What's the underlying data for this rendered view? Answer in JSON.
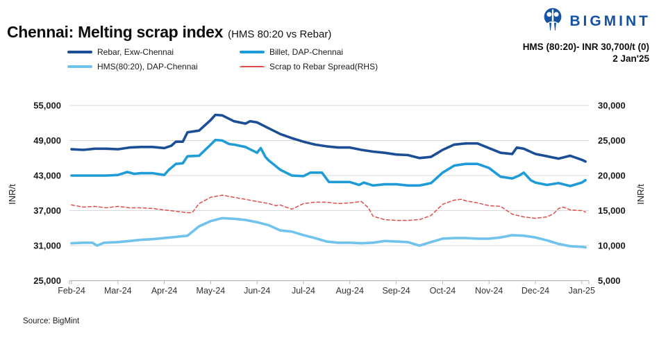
{
  "header": {
    "brand": "BIGMINT",
    "price_line": "HMS (80:20)- INR 30,700/t (0)",
    "date_line": "2 Jan'25"
  },
  "source_note": "Source: BigMint",
  "chart_data": {
    "type": "line",
    "title": "Chennai: Melting scrap index",
    "subtitle": "(HMS 80:20 vs Rebar)",
    "grid": "horizontal",
    "legend_position": "top",
    "x_tick_labels": [
      "Feb-24",
      "Mar-24",
      "Apr-24",
      "May-24",
      "Jun-24",
      "Jul-24",
      "Aug-24",
      "Sep-24",
      "Oct-24",
      "Nov-24",
      "Dec-24",
      "Jan-25"
    ],
    "x_unit": "months since Feb-24",
    "left_axis": {
      "label": "INR/t",
      "min": 25000,
      "max": 55000,
      "step": 6000,
      "ticks_top_to_bottom": [
        "55,000",
        "49,000",
        "43,000",
        "37,000",
        "31,000",
        "25,000"
      ]
    },
    "right_axis": {
      "label": "INR/t",
      "min": 5000,
      "max": 30000,
      "step": 5000,
      "ticks_top_to_bottom": [
        "30,000",
        "25,000",
        "20,000",
        "15,000",
        "10,000",
        "5,000"
      ]
    },
    "series": [
      {
        "name": "Rebar, Exw-Chennai",
        "axis": "left",
        "color": "#1b4e96",
        "style": "solid",
        "width": 3.6,
        "points": [
          [
            0,
            47500
          ],
          [
            0.25,
            47400
          ],
          [
            0.5,
            47600
          ],
          [
            0.75,
            47600
          ],
          [
            1,
            47500
          ],
          [
            1.25,
            47800
          ],
          [
            1.5,
            47900
          ],
          [
            1.75,
            47900
          ],
          [
            2,
            47700
          ],
          [
            2.15,
            48100
          ],
          [
            2.25,
            48800
          ],
          [
            2.4,
            48800
          ],
          [
            2.5,
            50400
          ],
          [
            2.75,
            50700
          ],
          [
            3,
            52500
          ],
          [
            3.1,
            53400
          ],
          [
            3.25,
            53300
          ],
          [
            3.5,
            52300
          ],
          [
            3.75,
            51900
          ],
          [
            3.85,
            52300
          ],
          [
            4,
            52100
          ],
          [
            4.25,
            51100
          ],
          [
            4.5,
            50100
          ],
          [
            4.75,
            49400
          ],
          [
            5,
            48800
          ],
          [
            5.25,
            48300
          ],
          [
            5.5,
            48000
          ],
          [
            5.75,
            47800
          ],
          [
            6,
            47800
          ],
          [
            6.25,
            47400
          ],
          [
            6.5,
            47100
          ],
          [
            6.75,
            46900
          ],
          [
            7,
            46600
          ],
          [
            7.25,
            46500
          ],
          [
            7.5,
            46000
          ],
          [
            7.75,
            46200
          ],
          [
            8,
            47400
          ],
          [
            8.25,
            48300
          ],
          [
            8.5,
            48500
          ],
          [
            8.75,
            48500
          ],
          [
            9,
            47700
          ],
          [
            9.25,
            46900
          ],
          [
            9.5,
            46700
          ],
          [
            9.6,
            47800
          ],
          [
            9.75,
            47600
          ],
          [
            10,
            46700
          ],
          [
            10.25,
            46300
          ],
          [
            10.5,
            45900
          ],
          [
            10.75,
            46400
          ],
          [
            11,
            45700
          ],
          [
            11.08,
            45400
          ]
        ]
      },
      {
        "name": "Billet, DAP-Chennai",
        "axis": "left",
        "color": "#1f9cd8",
        "style": "solid",
        "width": 3.6,
        "points": [
          [
            0,
            43000
          ],
          [
            0.25,
            43000
          ],
          [
            0.5,
            43000
          ],
          [
            0.75,
            43000
          ],
          [
            1,
            43100
          ],
          [
            1.2,
            43600
          ],
          [
            1.35,
            43300
          ],
          [
            1.5,
            43400
          ],
          [
            1.75,
            43400
          ],
          [
            2,
            43100
          ],
          [
            2.1,
            44000
          ],
          [
            2.25,
            45000
          ],
          [
            2.4,
            45100
          ],
          [
            2.5,
            46300
          ],
          [
            2.75,
            46400
          ],
          [
            3,
            48300
          ],
          [
            3.1,
            49100
          ],
          [
            3.25,
            49000
          ],
          [
            3.4,
            48400
          ],
          [
            3.5,
            48300
          ],
          [
            3.75,
            47900
          ],
          [
            4,
            46900
          ],
          [
            4.08,
            47700
          ],
          [
            4.18,
            46200
          ],
          [
            4.25,
            45600
          ],
          [
            4.5,
            44000
          ],
          [
            4.75,
            43000
          ],
          [
            5,
            42900
          ],
          [
            5.15,
            43500
          ],
          [
            5.4,
            43500
          ],
          [
            5.55,
            41900
          ],
          [
            5.75,
            41900
          ],
          [
            6,
            41900
          ],
          [
            6.2,
            41400
          ],
          [
            6.3,
            41800
          ],
          [
            6.5,
            41300
          ],
          [
            6.75,
            41500
          ],
          [
            7,
            41500
          ],
          [
            7.25,
            41300
          ],
          [
            7.5,
            41300
          ],
          [
            7.75,
            41700
          ],
          [
            8,
            43500
          ],
          [
            8.25,
            44700
          ],
          [
            8.5,
            45000
          ],
          [
            8.75,
            45000
          ],
          [
            9,
            44300
          ],
          [
            9.25,
            42800
          ],
          [
            9.5,
            42500
          ],
          [
            9.65,
            43000
          ],
          [
            9.75,
            43500
          ],
          [
            9.9,
            42200
          ],
          [
            10,
            41800
          ],
          [
            10.25,
            41400
          ],
          [
            10.5,
            41700
          ],
          [
            10.75,
            41200
          ],
          [
            11,
            41800
          ],
          [
            11.08,
            42200
          ]
        ]
      },
      {
        "name": "HMS(80:20), DAP-Chennai",
        "axis": "left",
        "color": "#70c4ec",
        "style": "solid",
        "width": 3.6,
        "points": [
          [
            0,
            31400
          ],
          [
            0.25,
            31500
          ],
          [
            0.45,
            31500
          ],
          [
            0.55,
            31000
          ],
          [
            0.7,
            31500
          ],
          [
            1,
            31600
          ],
          [
            1.25,
            31800
          ],
          [
            1.5,
            32000
          ],
          [
            1.75,
            32100
          ],
          [
            2,
            32300
          ],
          [
            2.25,
            32500
          ],
          [
            2.5,
            32700
          ],
          [
            2.75,
            34300
          ],
          [
            3,
            35200
          ],
          [
            3.25,
            35700
          ],
          [
            3.5,
            35600
          ],
          [
            3.75,
            35400
          ],
          [
            4,
            35000
          ],
          [
            4.25,
            34500
          ],
          [
            4.5,
            33600
          ],
          [
            4.75,
            33400
          ],
          [
            5,
            32800
          ],
          [
            5.25,
            32300
          ],
          [
            5.5,
            31700
          ],
          [
            5.75,
            31500
          ],
          [
            6,
            31500
          ],
          [
            6.25,
            31400
          ],
          [
            6.5,
            31500
          ],
          [
            6.75,
            31800
          ],
          [
            7,
            31700
          ],
          [
            7.25,
            31600
          ],
          [
            7.5,
            31000
          ],
          [
            7.75,
            31600
          ],
          [
            8,
            32200
          ],
          [
            8.25,
            32300
          ],
          [
            8.5,
            32300
          ],
          [
            8.75,
            32200
          ],
          [
            9,
            32200
          ],
          [
            9.25,
            32400
          ],
          [
            9.5,
            32800
          ],
          [
            9.75,
            32700
          ],
          [
            10,
            32400
          ],
          [
            10.25,
            31900
          ],
          [
            10.5,
            31300
          ],
          [
            10.75,
            30900
          ],
          [
            11,
            30800
          ],
          [
            11.08,
            30700
          ]
        ]
      },
      {
        "name": "Scrap to Rebar Spread(RHS)",
        "axis": "right",
        "color": "#e04c4c",
        "style": "dashed",
        "width": 1.5,
        "points": [
          [
            0,
            15800
          ],
          [
            0.25,
            15500
          ],
          [
            0.5,
            15600
          ],
          [
            0.75,
            15400
          ],
          [
            1,
            15600
          ],
          [
            1.25,
            15400
          ],
          [
            1.5,
            15400
          ],
          [
            1.75,
            15300
          ],
          [
            2,
            15100
          ],
          [
            2.25,
            14900
          ],
          [
            2.5,
            14700
          ],
          [
            2.6,
            14700
          ],
          [
            2.75,
            16000
          ],
          [
            3,
            16900
          ],
          [
            3.25,
            17200
          ],
          [
            3.5,
            16900
          ],
          [
            3.75,
            16600
          ],
          [
            4,
            16300
          ],
          [
            4.25,
            16000
          ],
          [
            4.4,
            15700
          ],
          [
            4.5,
            15800
          ],
          [
            4.75,
            15200
          ],
          [
            5,
            16000
          ],
          [
            5.25,
            16200
          ],
          [
            5.5,
            16200
          ],
          [
            5.75,
            16000
          ],
          [
            6,
            16100
          ],
          [
            6.25,
            16300
          ],
          [
            6.4,
            15400
          ],
          [
            6.5,
            14200
          ],
          [
            6.75,
            13700
          ],
          [
            7,
            13600
          ],
          [
            7.25,
            13600
          ],
          [
            7.5,
            13700
          ],
          [
            7.75,
            14300
          ],
          [
            8,
            15900
          ],
          [
            8.25,
            16500
          ],
          [
            8.4,
            16600
          ],
          [
            8.5,
            16400
          ],
          [
            8.75,
            16100
          ],
          [
            9,
            15700
          ],
          [
            9.25,
            15600
          ],
          [
            9.5,
            14500
          ],
          [
            9.75,
            14100
          ],
          [
            10,
            13900
          ],
          [
            10.25,
            14100
          ],
          [
            10.4,
            14600
          ],
          [
            10.5,
            15300
          ],
          [
            10.6,
            15500
          ],
          [
            10.75,
            15100
          ],
          [
            11,
            15000
          ],
          [
            11.08,
            14800
          ]
        ]
      }
    ]
  }
}
